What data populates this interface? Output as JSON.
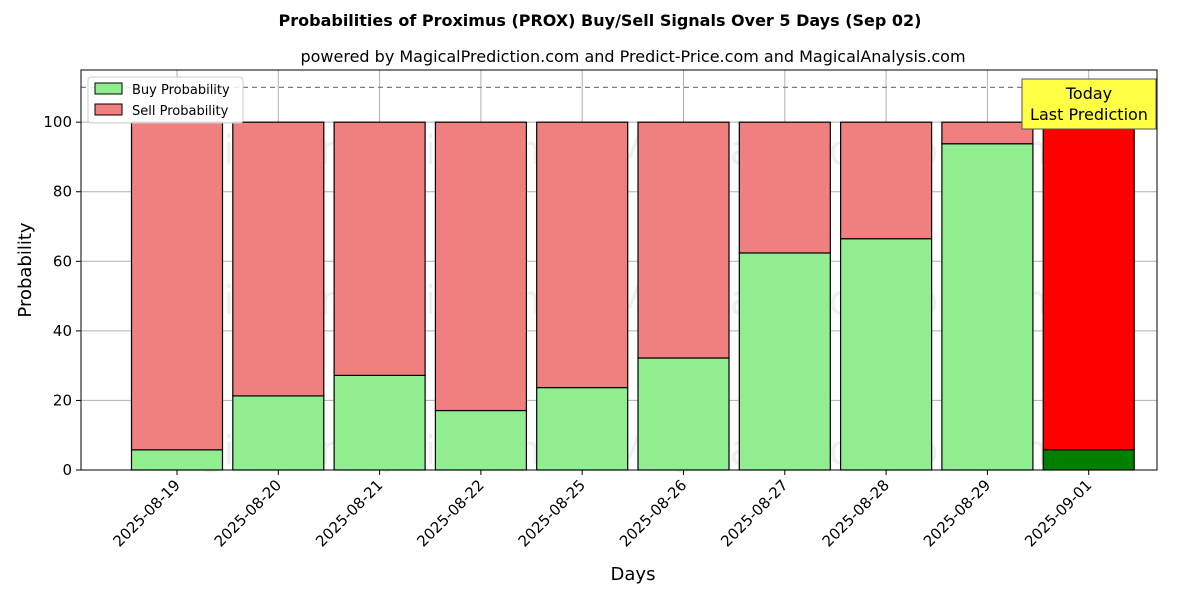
{
  "chart_data": {
    "type": "bar",
    "stacked": true,
    "title": "Probabilities of Proximus (PROX) Buy/Sell Signals Over 5 Days (Sep 02)",
    "subtitle": "powered by MagicalPrediction.com and Predict-Price.com and MagicalAnalysis.com",
    "xlabel": "Days",
    "ylabel": "Probability",
    "ylim": [
      0,
      115
    ],
    "yticks": [
      0,
      20,
      40,
      60,
      80,
      100
    ],
    "grid": true,
    "legend_position": "top-left",
    "categories": [
      "2025-08-19",
      "2025-08-20",
      "2025-08-21",
      "2025-08-22",
      "2025-08-25",
      "2025-08-26",
      "2025-08-27",
      "2025-08-28",
      "2025-08-29",
      "2025-09-01"
    ],
    "series": [
      {
        "name": "Buy Probability",
        "color": "#90ee90",
        "values": [
          5.8,
          21.3,
          27.2,
          17.1,
          23.7,
          32.2,
          62.4,
          66.5,
          93.8,
          5.8
        ]
      },
      {
        "name": "Sell Probability",
        "color": "#f08080",
        "values": [
          94.2,
          78.7,
          72.8,
          82.9,
          76.3,
          67.8,
          37.6,
          33.5,
          6.2,
          94.2
        ]
      }
    ],
    "highlight": {
      "category": "2025-09-01",
      "buy_color": "#008000",
      "sell_color": "#ff0000"
    },
    "reference_line": {
      "y": 110,
      "style": "dashed",
      "color": "#808080"
    },
    "annotation": {
      "line1": "Today",
      "line2": "Last Prediction",
      "box_color": "#ffff44"
    },
    "watermarks": [
      "MagicalAnalysis.com",
      "MagicalPrediction.com"
    ]
  }
}
